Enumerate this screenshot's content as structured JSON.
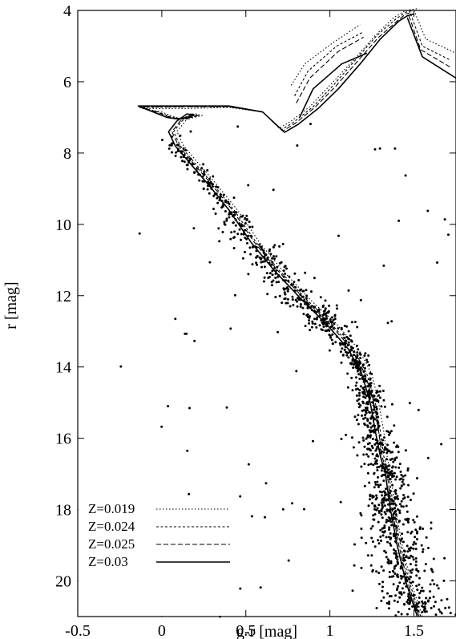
{
  "chart_data": {
    "type": "scatter",
    "title": "",
    "xlabel": "g-r [mag]",
    "ylabel": "r [mag]",
    "xlim": [
      -0.5,
      1.75
    ],
    "ylim": [
      21,
      4
    ],
    "y_inverted": true,
    "grid": false,
    "legend_position": "bottom-left",
    "x_ticks": [
      {
        "value": -0.5,
        "label": "-0.5"
      },
      {
        "value": 0,
        "label": "0"
      },
      {
        "value": 0.5,
        "label": "0.5"
      },
      {
        "value": 1,
        "label": "1"
      },
      {
        "value": 1.5,
        "label": "1.5"
      }
    ],
    "y_ticks": [
      {
        "value": 4,
        "label": "4"
      },
      {
        "value": 6,
        "label": "6"
      },
      {
        "value": 8,
        "label": "8"
      },
      {
        "value": 10,
        "label": "10"
      },
      {
        "value": 12,
        "label": "12"
      },
      {
        "value": 14,
        "label": "14"
      },
      {
        "value": 16,
        "label": "16"
      },
      {
        "value": 18,
        "label": "18"
      },
      {
        "value": 20,
        "label": "20"
      }
    ],
    "isochrones": [
      {
        "name": "Z=0.019",
        "line_style": "dotted",
        "main": [
          [
            1.55,
            21.0
          ],
          [
            1.48,
            20.0
          ],
          [
            1.43,
            19.0
          ],
          [
            1.39,
            18.0
          ],
          [
            1.36,
            17.0
          ],
          [
            1.34,
            16.5
          ],
          [
            1.32,
            15.8
          ],
          [
            1.29,
            15.0
          ],
          [
            1.25,
            14.2
          ],
          [
            1.17,
            13.5
          ],
          [
            1.04,
            12.8
          ],
          [
            0.88,
            12.1
          ],
          [
            0.72,
            11.3
          ],
          [
            0.58,
            10.5
          ],
          [
            0.45,
            9.6
          ],
          [
            0.33,
            8.9
          ],
          [
            0.22,
            8.3
          ],
          [
            0.13,
            7.8
          ],
          [
            0.09,
            7.4
          ],
          [
            0.14,
            7.1
          ],
          [
            0.2,
            6.9
          ],
          [
            0.24,
            6.95
          ],
          [
            0.15,
            7.05
          ],
          [
            0.08,
            7.0
          ],
          [
            0.0,
            6.85
          ],
          [
            -0.12,
            6.75
          ],
          [
            0.15,
            6.75
          ],
          [
            0.4,
            6.72
          ],
          [
            0.6,
            6.85
          ],
          [
            0.7,
            7.3
          ],
          [
            0.77,
            7.1
          ],
          [
            0.88,
            6.7
          ],
          [
            1.0,
            6.1
          ],
          [
            1.14,
            5.4
          ],
          [
            1.27,
            4.7
          ],
          [
            1.38,
            4.2
          ],
          [
            1.45,
            4.0
          ],
          [
            1.52,
            3.95
          ]
        ],
        "branch": [
          [
            1.5,
            4.0
          ],
          [
            1.57,
            4.8
          ],
          [
            1.75,
            5.2
          ]
        ],
        "clump": [
          [
            0.77,
            6.1
          ],
          [
            0.85,
            5.5
          ],
          [
            1.02,
            4.9
          ],
          [
            1.18,
            4.4
          ]
        ]
      },
      {
        "name": "Z=0.024",
        "line_style": "dashed-fine",
        "main": [
          [
            1.54,
            21.0
          ],
          [
            1.47,
            20.0
          ],
          [
            1.42,
            19.0
          ],
          [
            1.38,
            18.0
          ],
          [
            1.35,
            17.0
          ],
          [
            1.32,
            16.5
          ],
          [
            1.3,
            15.8
          ],
          [
            1.27,
            15.0
          ],
          [
            1.22,
            14.2
          ],
          [
            1.14,
            13.5
          ],
          [
            1.01,
            12.8
          ],
          [
            0.86,
            12.1
          ],
          [
            0.7,
            11.3
          ],
          [
            0.56,
            10.5
          ],
          [
            0.43,
            9.6
          ],
          [
            0.31,
            8.9
          ],
          [
            0.2,
            8.3
          ],
          [
            0.11,
            7.8
          ],
          [
            0.07,
            7.4
          ],
          [
            0.12,
            7.1
          ],
          [
            0.18,
            6.9
          ],
          [
            0.22,
            6.95
          ],
          [
            0.13,
            7.05
          ],
          [
            0.06,
            7.0
          ],
          [
            -0.02,
            6.85
          ],
          [
            -0.13,
            6.72
          ],
          [
            0.15,
            6.7
          ],
          [
            0.4,
            6.7
          ],
          [
            0.6,
            6.85
          ],
          [
            0.71,
            7.35
          ],
          [
            0.78,
            7.15
          ],
          [
            0.9,
            6.7
          ],
          [
            1.02,
            6.1
          ],
          [
            1.15,
            5.4
          ],
          [
            1.28,
            4.7
          ],
          [
            1.39,
            4.25
          ],
          [
            1.45,
            4.05
          ],
          [
            1.5,
            4.0
          ]
        ],
        "branch": [
          [
            1.48,
            4.1
          ],
          [
            1.55,
            5.0
          ],
          [
            1.72,
            5.4
          ]
        ],
        "clump": [
          [
            0.79,
            6.4
          ],
          [
            0.87,
            5.7
          ],
          [
            1.04,
            5.0
          ],
          [
            1.2,
            4.6
          ]
        ]
      },
      {
        "name": "Z=0.025",
        "line_style": "dashed",
        "main": [
          [
            1.53,
            21.0
          ],
          [
            1.46,
            20.0
          ],
          [
            1.41,
            19.0
          ],
          [
            1.37,
            18.0
          ],
          [
            1.34,
            17.0
          ],
          [
            1.31,
            16.5
          ],
          [
            1.29,
            15.8
          ],
          [
            1.26,
            15.0
          ],
          [
            1.21,
            14.2
          ],
          [
            1.13,
            13.5
          ],
          [
            1.0,
            12.8
          ],
          [
            0.85,
            12.1
          ],
          [
            0.69,
            11.3
          ],
          [
            0.55,
            10.5
          ],
          [
            0.42,
            9.6
          ],
          [
            0.3,
            8.9
          ],
          [
            0.19,
            8.3
          ],
          [
            0.1,
            7.8
          ],
          [
            0.06,
            7.4
          ],
          [
            0.11,
            7.1
          ],
          [
            0.17,
            6.9
          ],
          [
            0.21,
            6.95
          ],
          [
            0.12,
            7.05
          ],
          [
            0.05,
            7.0
          ],
          [
            -0.03,
            6.85
          ],
          [
            -0.13,
            6.7
          ],
          [
            0.15,
            6.7
          ],
          [
            0.4,
            6.7
          ],
          [
            0.6,
            6.85
          ],
          [
            0.72,
            7.38
          ],
          [
            0.79,
            7.18
          ],
          [
            0.91,
            6.72
          ],
          [
            1.03,
            6.15
          ],
          [
            1.16,
            5.45
          ],
          [
            1.29,
            4.75
          ],
          [
            1.4,
            4.3
          ],
          [
            1.45,
            4.1
          ],
          [
            1.49,
            4.05
          ]
        ],
        "branch": [
          [
            1.47,
            4.15
          ],
          [
            1.54,
            5.1
          ],
          [
            1.72,
            5.6
          ]
        ],
        "clump": [
          [
            0.8,
            6.6
          ],
          [
            0.88,
            5.9
          ],
          [
            1.05,
            5.15
          ],
          [
            1.2,
            4.75
          ]
        ]
      },
      {
        "name": "Z=0.03",
        "line_style": "solid",
        "main": [
          [
            1.52,
            21.0
          ],
          [
            1.45,
            20.0
          ],
          [
            1.4,
            19.0
          ],
          [
            1.36,
            18.0
          ],
          [
            1.33,
            17.0
          ],
          [
            1.3,
            16.5
          ],
          [
            1.27,
            15.8
          ],
          [
            1.24,
            15.0
          ],
          [
            1.19,
            14.2
          ],
          [
            1.11,
            13.5
          ],
          [
            0.98,
            12.8
          ],
          [
            0.83,
            12.1
          ],
          [
            0.67,
            11.3
          ],
          [
            0.53,
            10.5
          ],
          [
            0.4,
            9.6
          ],
          [
            0.28,
            8.9
          ],
          [
            0.17,
            8.3
          ],
          [
            0.08,
            7.8
          ],
          [
            0.04,
            7.4
          ],
          [
            0.09,
            7.1
          ],
          [
            0.15,
            6.9
          ],
          [
            0.19,
            6.95
          ],
          [
            0.1,
            7.05
          ],
          [
            0.03,
            7.0
          ],
          [
            -0.05,
            6.85
          ],
          [
            -0.14,
            6.68
          ],
          [
            0.15,
            6.68
          ],
          [
            0.4,
            6.68
          ],
          [
            0.6,
            6.85
          ],
          [
            0.73,
            7.42
          ],
          [
            0.81,
            7.2
          ],
          [
            0.93,
            6.75
          ],
          [
            1.05,
            6.2
          ],
          [
            1.18,
            5.5
          ],
          [
            1.3,
            4.8
          ],
          [
            1.41,
            4.3
          ],
          [
            1.46,
            4.15
          ],
          [
            1.5,
            4.1
          ]
        ],
        "branch": [
          [
            1.46,
            4.2
          ],
          [
            1.55,
            5.3
          ],
          [
            1.75,
            5.9
          ]
        ],
        "clump": [
          [
            0.82,
            7.0
          ],
          [
            0.9,
            6.2
          ],
          [
            1.07,
            5.5
          ],
          [
            1.22,
            5.2
          ]
        ]
      }
    ],
    "stars_summary": "Approximately 1500 black point stars following the cluster main sequence, turnoff near g-r 0.1 / r 8, giant branch and scattered field stars"
  }
}
